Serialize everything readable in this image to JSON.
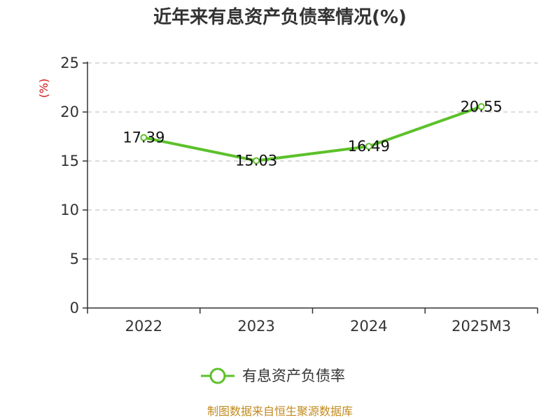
{
  "chart_data": {
    "type": "line",
    "title": "近年来有息资产负债率情况(%)",
    "ylabel": "(%)",
    "xlabel": "",
    "categories": [
      "2022",
      "2023",
      "2024",
      "2025M3"
    ],
    "series": [
      {
        "name": "有息资产负债率",
        "values": [
          17.39,
          15.03,
          16.49,
          20.55
        ],
        "labels": [
          "17.39",
          "15.03",
          "16.49",
          "20.55"
        ]
      }
    ],
    "ylim": [
      0,
      25
    ],
    "yticks": [
      "0",
      "5",
      "10",
      "15",
      "20",
      "25"
    ],
    "grid": true,
    "legend": "bottom",
    "colors": {
      "line": "#5cc12a",
      "ylabel": "#d01010",
      "source": "#c28a1e"
    }
  },
  "source": "制图数据来自恒生聚源数据库"
}
